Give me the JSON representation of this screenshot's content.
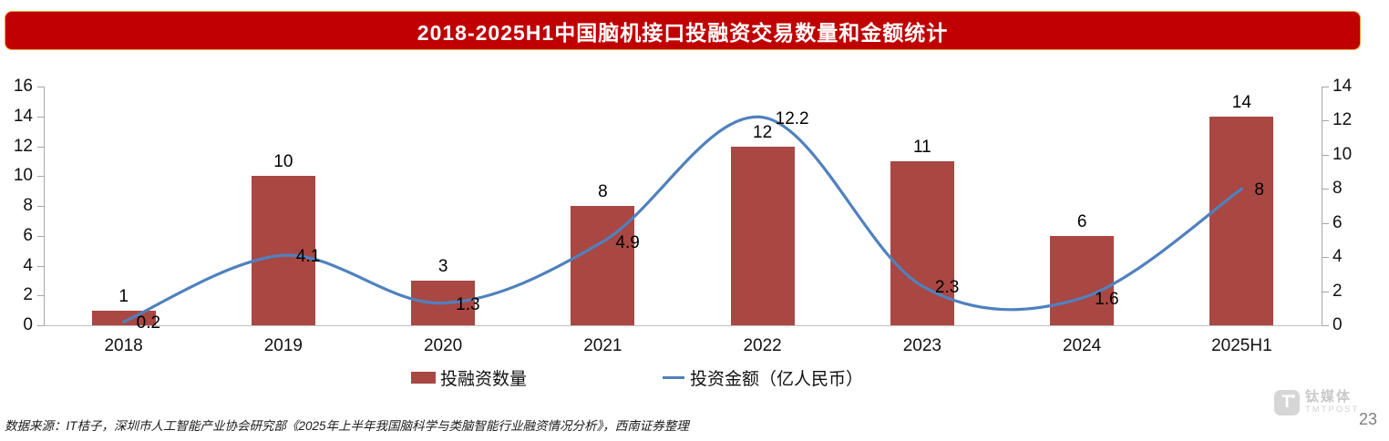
{
  "title": "2018-2025H1中国脑机接口投融资交易数量和金额统计",
  "colors": {
    "banner_bg": "#C00000",
    "banner_border": "#E8A33D",
    "title_text": "#FFFFFF",
    "bar": "#A94743",
    "line": "#5081BE",
    "axis": "#A6A6A6",
    "baseline": "#BFBFBF",
    "label_text": "#000000",
    "footer_text": "#1A1A1A",
    "watermark_text": "#C9C9C9",
    "page_number_text": "#7F7F7F"
  },
  "chart_data": {
    "type": "bar+line",
    "categories": [
      "2018",
      "2019",
      "2020",
      "2021",
      "2022",
      "2023",
      "2024",
      "2025H1"
    ],
    "series": [
      {
        "name": "投融资数量",
        "type": "bar",
        "axis": "left",
        "values": [
          1,
          10,
          3,
          8,
          12,
          11,
          6,
          14
        ]
      },
      {
        "name": "投资金额（亿人民币）",
        "type": "line",
        "axis": "right",
        "values": [
          0.2,
          4.1,
          1.3,
          4.9,
          12.2,
          2.3,
          1.6,
          8
        ]
      }
    ],
    "title": "2018-2025H1中国脑机接口投融资交易数量和金额统计",
    "xlabel": "",
    "ylabel_left": "",
    "ylabel_right": "",
    "left_axis": {
      "min": 0,
      "max": 16,
      "step": 2
    },
    "right_axis": {
      "min": 0,
      "max": 14,
      "step": 2
    },
    "grid": false,
    "smooth_line": true,
    "data_labels": true,
    "legend_position": "bottom"
  },
  "legend": [
    {
      "label": "投融资数量",
      "swatch": "bar"
    },
    {
      "label": "投资金额（亿人民币）",
      "swatch": "line"
    }
  ],
  "footer": {
    "source": "数据来源：IT桔子，深圳市人工智能产业协会研究部《2025年上半年我国脑科学与类脑智能行业融资情况分析》，西南证券整理"
  },
  "watermark": {
    "logo_letter": "T",
    "cn": "钛媒体",
    "en": "TMTPOST"
  },
  "page_number": "23"
}
